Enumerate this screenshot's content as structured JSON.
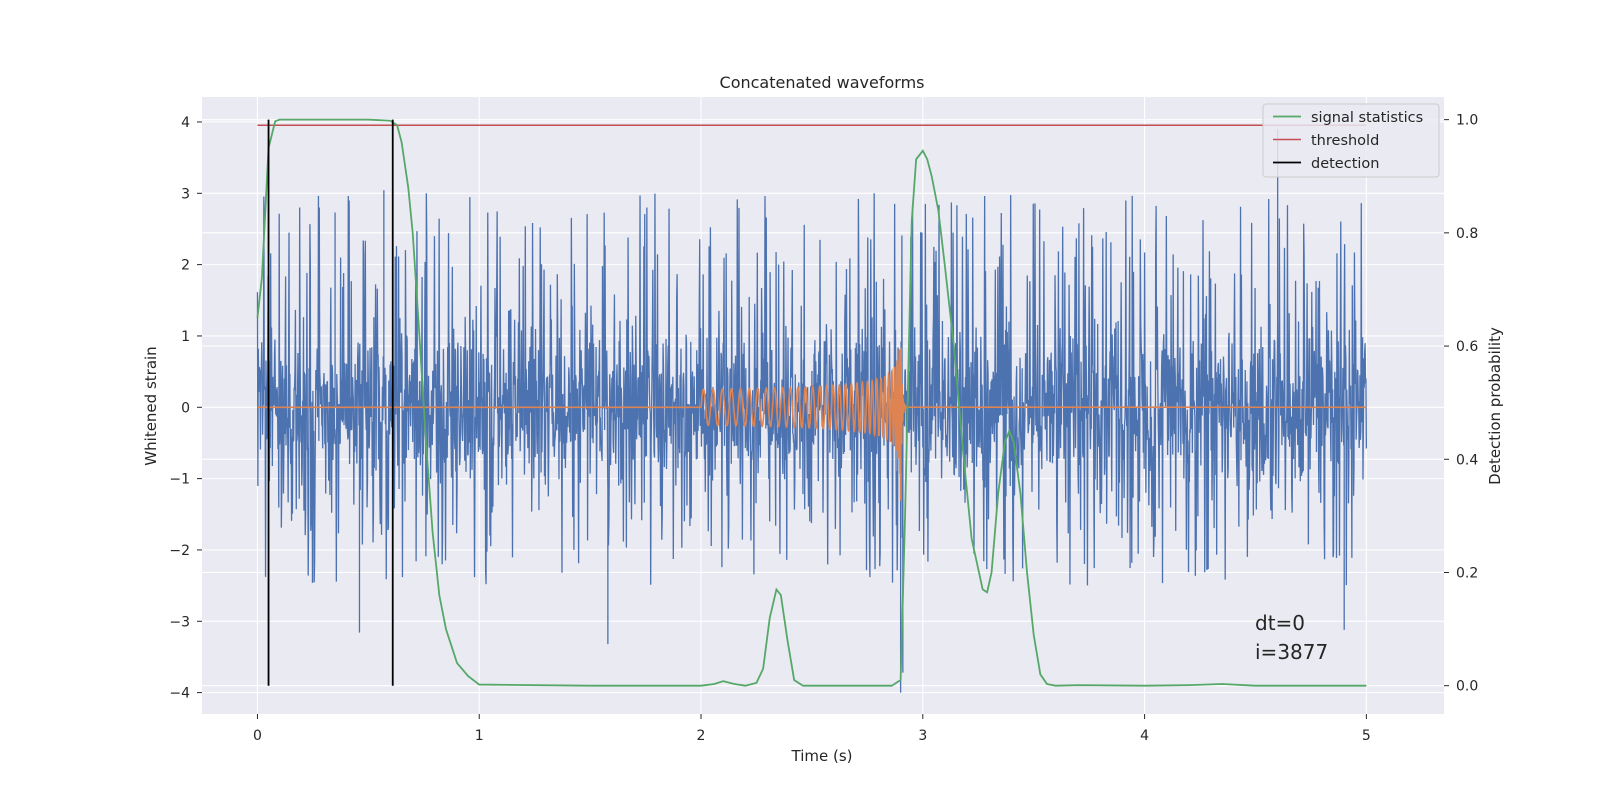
{
  "chart_data": {
    "type": "line",
    "title": "Concatenated waveforms",
    "xlabel": "Time (s)",
    "ylabel_left": "Whitened strain",
    "ylabel_right": "Detection probability",
    "xlim": [
      -0.25,
      5.35
    ],
    "ylim_left": [
      -4.3,
      4.35
    ],
    "ylim_right": [
      -0.05,
      1.04
    ],
    "x_ticks": [
      0,
      1,
      2,
      3,
      4,
      5
    ],
    "y_ticks_left": [
      -4,
      -3,
      -2,
      -1,
      0,
      1,
      2,
      3,
      4
    ],
    "y_ticks_right": [
      0.0,
      0.2,
      0.4,
      0.6,
      0.8,
      1.0
    ],
    "grid": true,
    "legend_position": "upper-right",
    "legend": [
      "signal statistics",
      "threshold",
      "detection"
    ],
    "annotations": [
      "dt=0",
      "i=3877"
    ],
    "colors": {
      "noise": "#4c72b0",
      "chirp": "#dd8452",
      "signal_statistics": "#55a868",
      "threshold": "#c44e52",
      "detection": "#000000",
      "background": "#eaeaf2",
      "grid": "#ffffff"
    },
    "noise": {
      "axis": "left",
      "x_start": 0.0,
      "x_end": 5.0,
      "typical_range": [
        -2.5,
        3.0
      ],
      "extremes": [
        -4.0,
        3.9
      ]
    },
    "chirp": {
      "axis": "left",
      "x_start": 2.0,
      "x_peak": 2.9,
      "x_end": 2.93,
      "start_amplitude": 0.15,
      "peak_amplitude": 1.15,
      "min_value": -1.35
    },
    "signal_statistics": {
      "axis": "right",
      "x": [
        0.0,
        0.02,
        0.05,
        0.08,
        0.1,
        0.15,
        0.5,
        0.6,
        0.63,
        0.65,
        0.68,
        0.7,
        0.73,
        0.76,
        0.79,
        0.82,
        0.85,
        0.9,
        0.95,
        1.0,
        1.5,
        2.0,
        2.06,
        2.1,
        2.15,
        2.2,
        2.25,
        2.28,
        2.31,
        2.34,
        2.36,
        2.39,
        2.42,
        2.46,
        2.5,
        2.6,
        2.7,
        2.8,
        2.86,
        2.9,
        2.92,
        2.95,
        2.97,
        3.0,
        3.02,
        3.04,
        3.07,
        3.1,
        3.14,
        3.18,
        3.22,
        3.27,
        3.29,
        3.31,
        3.34,
        3.37,
        3.39,
        3.41,
        3.44,
        3.47,
        3.5,
        3.53,
        3.56,
        3.6,
        3.7,
        4.0,
        4.2,
        4.35,
        4.5,
        5.0
      ],
      "y": [
        0.65,
        0.72,
        0.95,
        0.997,
        1.0,
        1.0,
        1.0,
        0.998,
        0.99,
        0.96,
        0.88,
        0.8,
        0.62,
        0.43,
        0.27,
        0.16,
        0.1,
        0.04,
        0.017,
        0.002,
        0.0,
        0.0,
        0.003,
        0.008,
        0.003,
        0.0,
        0.005,
        0.03,
        0.12,
        0.17,
        0.16,
        0.08,
        0.01,
        0.0,
        0.0,
        0.0,
        0.0,
        0.0,
        0.0,
        0.01,
        0.3,
        0.82,
        0.93,
        0.945,
        0.93,
        0.9,
        0.84,
        0.74,
        0.6,
        0.42,
        0.26,
        0.17,
        0.165,
        0.2,
        0.34,
        0.43,
        0.45,
        0.43,
        0.34,
        0.2,
        0.09,
        0.02,
        0.003,
        0.0,
        0.001,
        0.0,
        0.001,
        0.003,
        0.0,
        0.0
      ]
    },
    "threshold": {
      "axis": "right",
      "x": [
        0.0,
        5.0
      ],
      "y": [
        0.99,
        0.99
      ]
    },
    "detections": {
      "axis": "right",
      "x": [
        0.05,
        0.61
      ],
      "y_range": [
        0.0,
        1.0
      ]
    }
  }
}
